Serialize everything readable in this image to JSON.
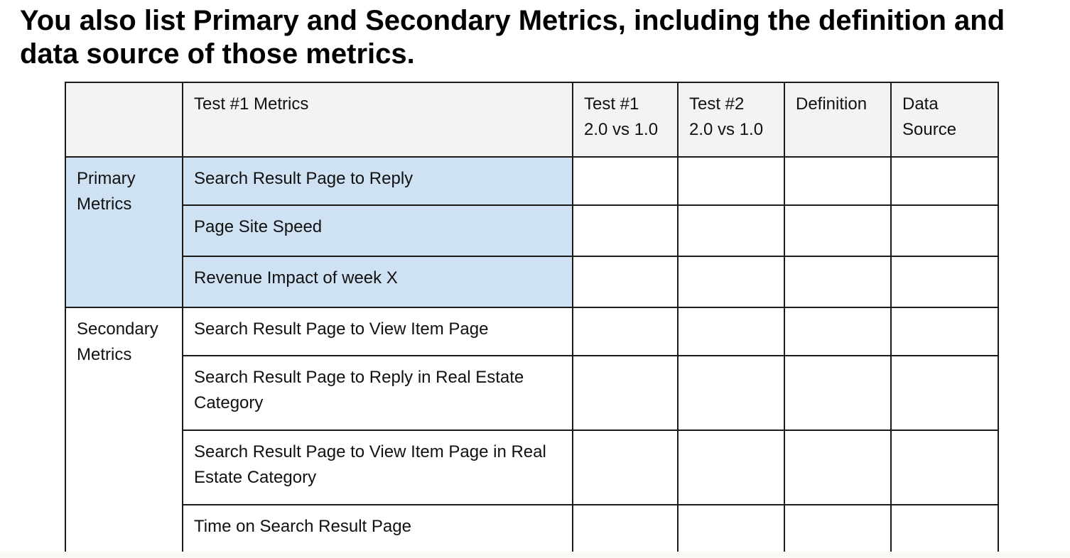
{
  "title": "You also list Primary and Secondary Metrics, including the definition and data source of those metrics.",
  "table": {
    "headers": {
      "group": "",
      "metrics": "Test #1 Metrics",
      "test1_line1": "Test #1",
      "test1_line2": "2.0 vs 1.0",
      "test2_line1": "Test #2",
      "test2_line2": "2.0 vs 1.0",
      "definition": "Definition",
      "source_line1": "Data",
      "source_line2": "Source"
    },
    "groups": [
      {
        "label_line1": "Primary",
        "label_line2": "Metrics",
        "highlight_color": "#cfe2f3",
        "metrics": [
          "Search Result Page to Reply",
          "Page Site Speed",
          "Revenue Impact of week X"
        ]
      },
      {
        "label_line1": "Secondary",
        "label_line2": "Metrics",
        "metrics": [
          "Search Result Page to View Item Page",
          "Search Result Page to Reply in Real Estate Category",
          "Search Result Page to View Item Page in Real Estate Category",
          "Time on Search Result Page"
        ]
      }
    ],
    "header_bg": "#f3f3f3",
    "border_color": "#1a1a1a"
  }
}
